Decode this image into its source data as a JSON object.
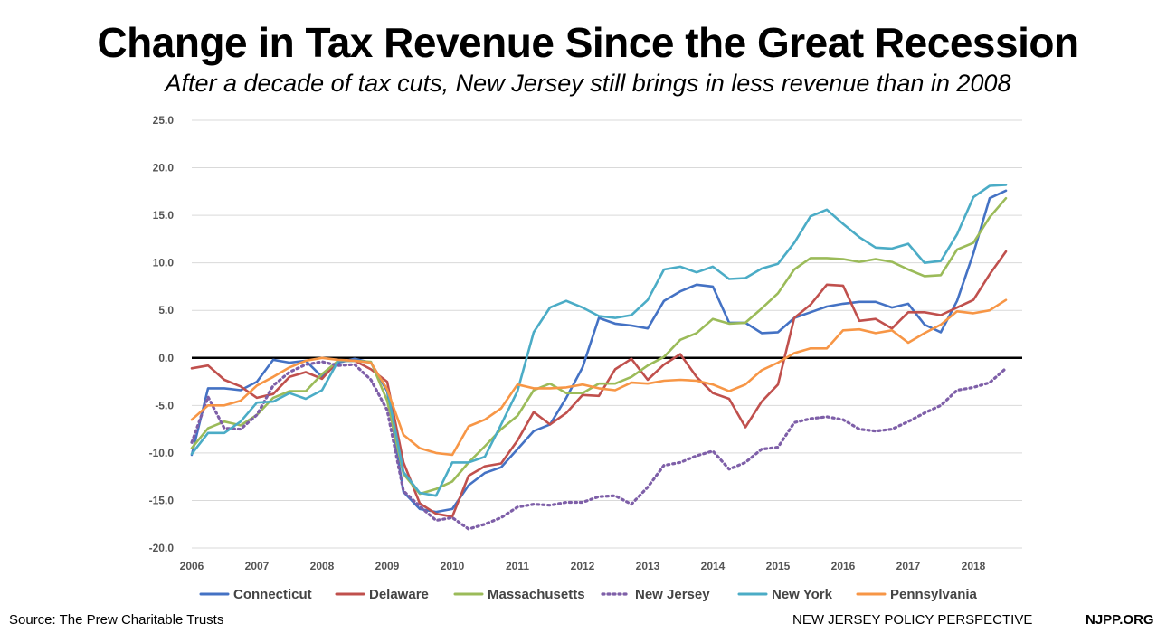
{
  "header": {
    "title": "Change in Tax Revenue Since the Great Recession",
    "subtitle": "After a decade of tax cuts, New Jersey still brings in less revenue than in 2008"
  },
  "footer": {
    "source": "Source: The Prew Charitable Trusts",
    "org": "NEW JERSEY POLICY PERSPECTIVE",
    "site": "NJPP.ORG"
  },
  "chart_data": {
    "type": "line",
    "title": "Change in Tax Revenue Since the Great Recession",
    "subtitle": "After a decade of tax cuts, New Jersey still brings in less revenue than in 2008",
    "xlabel": "",
    "ylabel": "",
    "xlim": [
      2006,
      2018.75
    ],
    "ylim": [
      -20,
      25
    ],
    "yticks": [
      "25.0",
      "20.0",
      "15.0",
      "10.0",
      "5.0",
      "0.0",
      "-5.0",
      "-10.0",
      "-15.0",
      "-20.0"
    ],
    "xticks": [
      "2006",
      "2007",
      "2008",
      "2009",
      "2010",
      "2011",
      "2012",
      "2013",
      "2014",
      "2015",
      "2016",
      "2017",
      "2018"
    ],
    "grid": true,
    "legend": "bottom",
    "x": [
      2006,
      2006.25,
      2006.5,
      2006.75,
      2007,
      2007.25,
      2007.5,
      2007.75,
      2008,
      2008.25,
      2008.5,
      2008.75,
      2009,
      2009.25,
      2009.5,
      2009.75,
      2010,
      2010.25,
      2010.5,
      2010.75,
      2011,
      2011.25,
      2011.5,
      2011.75,
      2012,
      2012.25,
      2012.5,
      2012.75,
      2013,
      2013.25,
      2013.5,
      2013.75,
      2014,
      2014.25,
      2014.5,
      2014.75,
      2015,
      2015.25,
      2015.5,
      2015.75,
      2016,
      2016.25,
      2016.5,
      2016.75,
      2017,
      2017.25,
      2017.5,
      2017.75,
      2018,
      2018.25,
      2018.5
    ],
    "series": [
      {
        "name": "Connecticut",
        "color": "#4472C4",
        "dashed": false,
        "values": [
          -10.2,
          -3.2,
          -3.2,
          -3.4,
          -2.5,
          -0.2,
          -0.5,
          -0.3,
          -2.0,
          -0.5,
          -0.1,
          -0.5,
          -3.5,
          -14.1,
          -15.9,
          -16.2,
          -15.9,
          -13.4,
          -12.1,
          -11.5,
          -9.6,
          -7.7,
          -7.0,
          -4.2,
          -1.0,
          4.2,
          3.6,
          3.4,
          3.1,
          6.0,
          7.0,
          7.7,
          7.5,
          3.7,
          3.7,
          2.6,
          2.7,
          4.2,
          4.8,
          5.4,
          5.7,
          5.9,
          5.9,
          5.3,
          5.7,
          3.5,
          2.7,
          6.0,
          11.0,
          16.8,
          17.6
        ]
      },
      {
        "name": "Delaware",
        "color": "#C0504D",
        "dashed": false,
        "values": [
          -1.1,
          -0.8,
          -2.3,
          -3.0,
          -4.2,
          -3.8,
          -2.0,
          -1.5,
          -2.2,
          -0.3,
          -0.3,
          -1.2,
          -2.5,
          -11.0,
          -15.3,
          -16.4,
          -16.7,
          -12.4,
          -11.4,
          -11.1,
          -8.7,
          -5.7,
          -7.0,
          -5.8,
          -3.9,
          -4.0,
          -1.2,
          -0.1,
          -2.3,
          -0.7,
          0.4,
          -2.0,
          -3.7,
          -4.3,
          -7.3,
          -4.6,
          -2.8,
          4.2,
          5.6,
          7.7,
          7.6,
          3.9,
          4.1,
          3.1,
          4.8,
          4.8,
          4.5,
          5.3,
          6.1,
          8.8,
          11.2
        ]
      },
      {
        "name": "Massachusetts",
        "color": "#9BBB59",
        "dashed": false,
        "values": [
          -9.5,
          -7.4,
          -6.7,
          -7.1,
          -6.0,
          -4.2,
          -3.5,
          -3.5,
          -1.7,
          -0.3,
          -0.3,
          -0.4,
          -4.5,
          -12.2,
          -14.3,
          -13.8,
          -13.0,
          -11.0,
          -9.3,
          -7.5,
          -6.1,
          -3.4,
          -2.7,
          -3.7,
          -3.7,
          -2.7,
          -2.7,
          -2.0,
          -0.8,
          0.1,
          1.9,
          2.6,
          4.1,
          3.6,
          3.7,
          5.2,
          6.8,
          9.3,
          10.5,
          10.5,
          10.4,
          10.1,
          10.4,
          10.1,
          9.3,
          8.6,
          8.7,
          11.4,
          12.1,
          14.8,
          16.8
        ]
      },
      {
        "name": "New Jersey",
        "color": "#7E5FA8",
        "dashed": true,
        "values": [
          -8.9,
          -4.1,
          -7.4,
          -7.5,
          -6.0,
          -2.9,
          -1.5,
          -0.7,
          -0.4,
          -0.8,
          -0.7,
          -2.3,
          -5.5,
          -14.0,
          -15.6,
          -17.1,
          -16.8,
          -18.0,
          -17.5,
          -16.8,
          -15.7,
          -15.4,
          -15.5,
          -15.2,
          -15.2,
          -14.6,
          -14.5,
          -15.4,
          -13.6,
          -11.3,
          -11.0,
          -10.3,
          -9.8,
          -11.7,
          -11.0,
          -9.6,
          -9.4,
          -6.8,
          -6.4,
          -6.2,
          -6.5,
          -7.5,
          -7.7,
          -7.5,
          -6.7,
          -5.8,
          -5.0,
          -3.4,
          -3.1,
          -2.6,
          -1.1
        ]
      },
      {
        "name": "New York",
        "color": "#4BACC6",
        "dashed": false,
        "values": [
          -10.1,
          -7.9,
          -7.9,
          -6.7,
          -4.7,
          -4.6,
          -3.7,
          -4.3,
          -3.4,
          -0.3,
          -0.3,
          -0.5,
          -3.3,
          -12.0,
          -14.2,
          -14.5,
          -11.0,
          -11.0,
          -10.4,
          -7.0,
          -3.5,
          2.7,
          5.3,
          6.0,
          5.3,
          4.4,
          4.2,
          4.5,
          6.1,
          9.3,
          9.6,
          9.0,
          9.6,
          8.3,
          8.4,
          9.4,
          9.9,
          12.1,
          14.9,
          15.6,
          14.1,
          12.7,
          11.6,
          11.5,
          12.0,
          10.0,
          10.2,
          13.0,
          16.9,
          18.1,
          18.2
        ]
      },
      {
        "name": "Pennsylvania",
        "color": "#F79646",
        "dashed": false,
        "values": [
          -6.5,
          -5.0,
          -5.0,
          -4.5,
          -2.9,
          -2.0,
          -1.0,
          -0.3,
          0.0,
          -0.2,
          -0.3,
          -0.5,
          -3.3,
          -8.1,
          -9.5,
          -10.0,
          -10.2,
          -7.2,
          -6.5,
          -5.3,
          -2.8,
          -3.2,
          -3.2,
          -3.1,
          -2.8,
          -3.2,
          -3.4,
          -2.6,
          -2.7,
          -2.4,
          -2.3,
          -2.4,
          -2.8,
          -3.5,
          -2.8,
          -1.3,
          -0.5,
          0.5,
          1.0,
          1.0,
          2.9,
          3.0,
          2.6,
          2.9,
          1.6,
          2.6,
          3.5,
          4.9,
          4.7,
          5.0,
          6.1
        ]
      }
    ]
  }
}
